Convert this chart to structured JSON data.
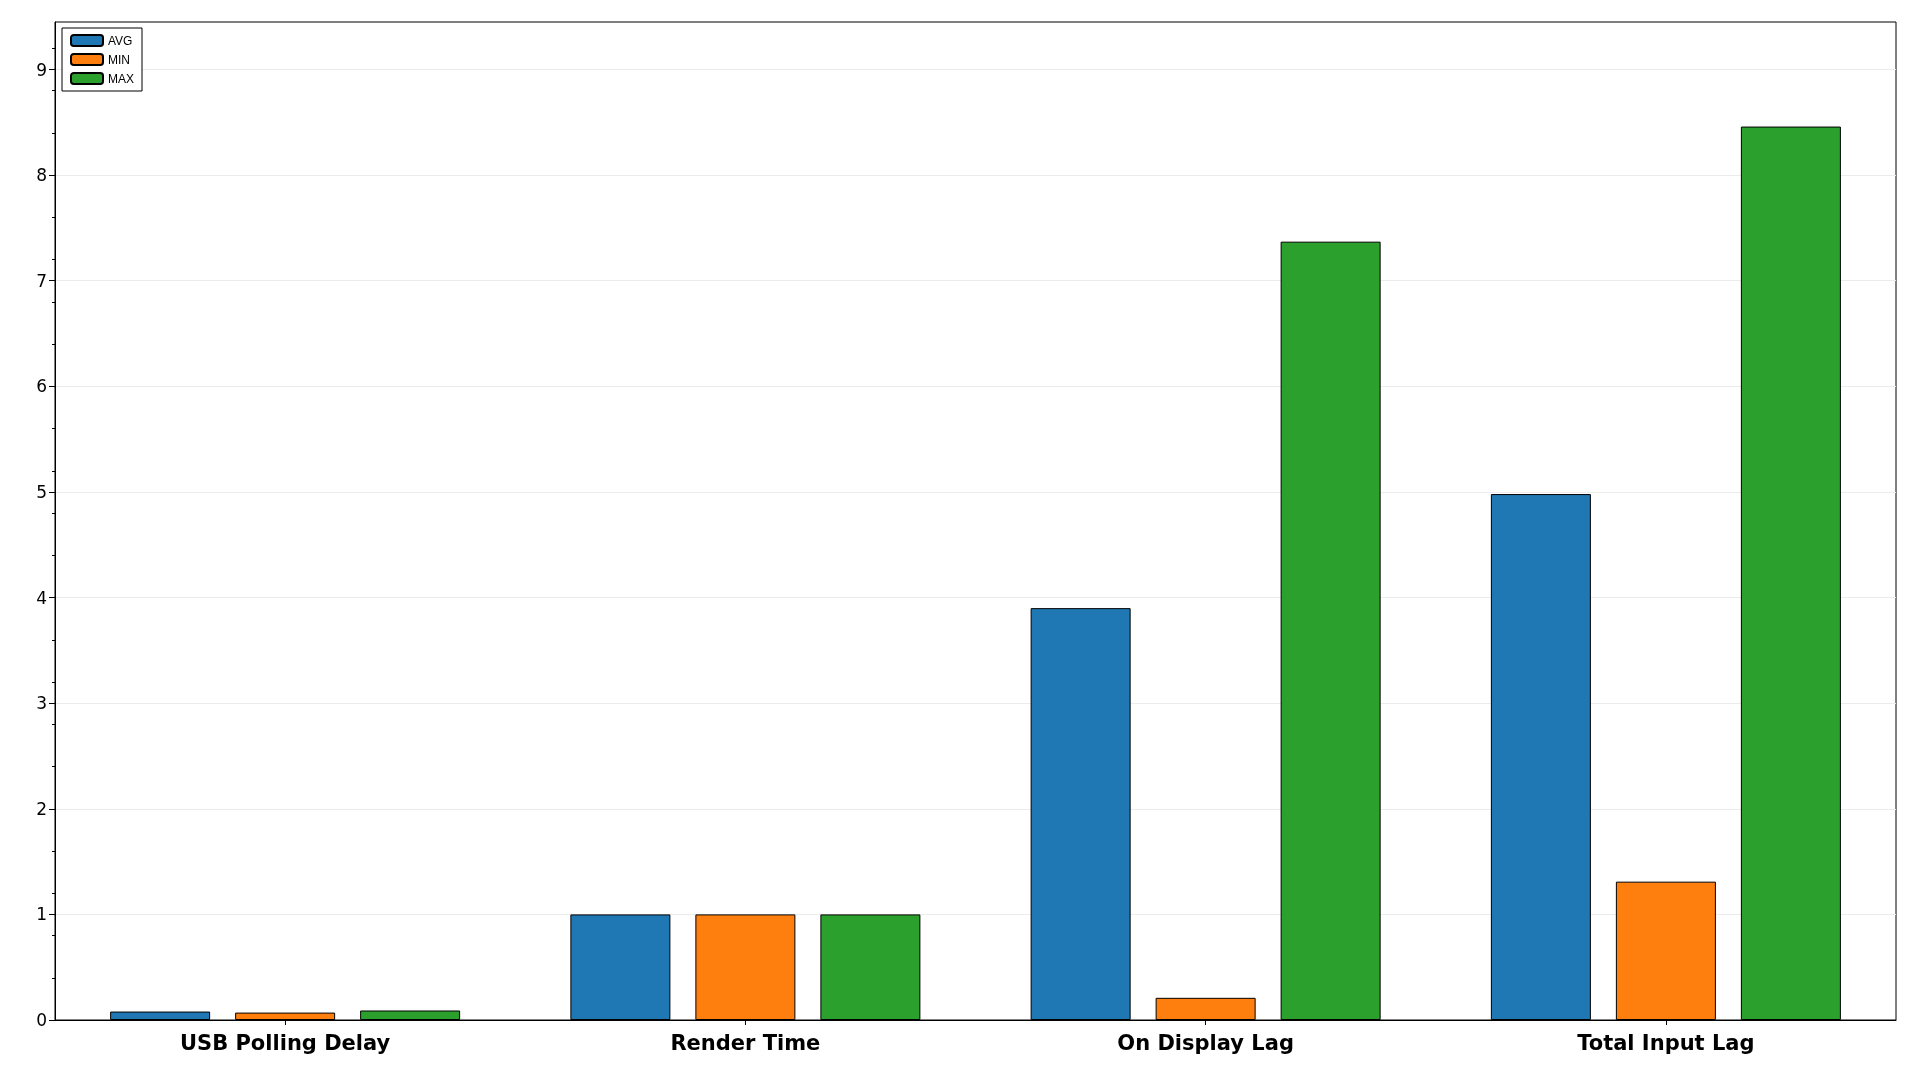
{
  "chart_data": {
    "type": "bar",
    "categories": [
      "USB Polling Delay",
      "Render Time",
      "On Display Lag",
      "Total Input Lag"
    ],
    "series": [
      {
        "name": "AVG",
        "color": "#1f77b4",
        "values": [
          0.08,
          1.0,
          3.9,
          4.98
        ]
      },
      {
        "name": "MIN",
        "color": "#ff7f0e",
        "values": [
          0.07,
          1.0,
          0.21,
          1.31
        ]
      },
      {
        "name": "MAX",
        "color": "#2ca02c",
        "values": [
          0.09,
          1.0,
          7.37,
          8.46
        ]
      }
    ],
    "ylim": [
      0,
      9.45
    ],
    "yticks": [
      0,
      1,
      2,
      3,
      4,
      5,
      6,
      7,
      8,
      9
    ],
    "grid": "y",
    "legend": "top left"
  }
}
